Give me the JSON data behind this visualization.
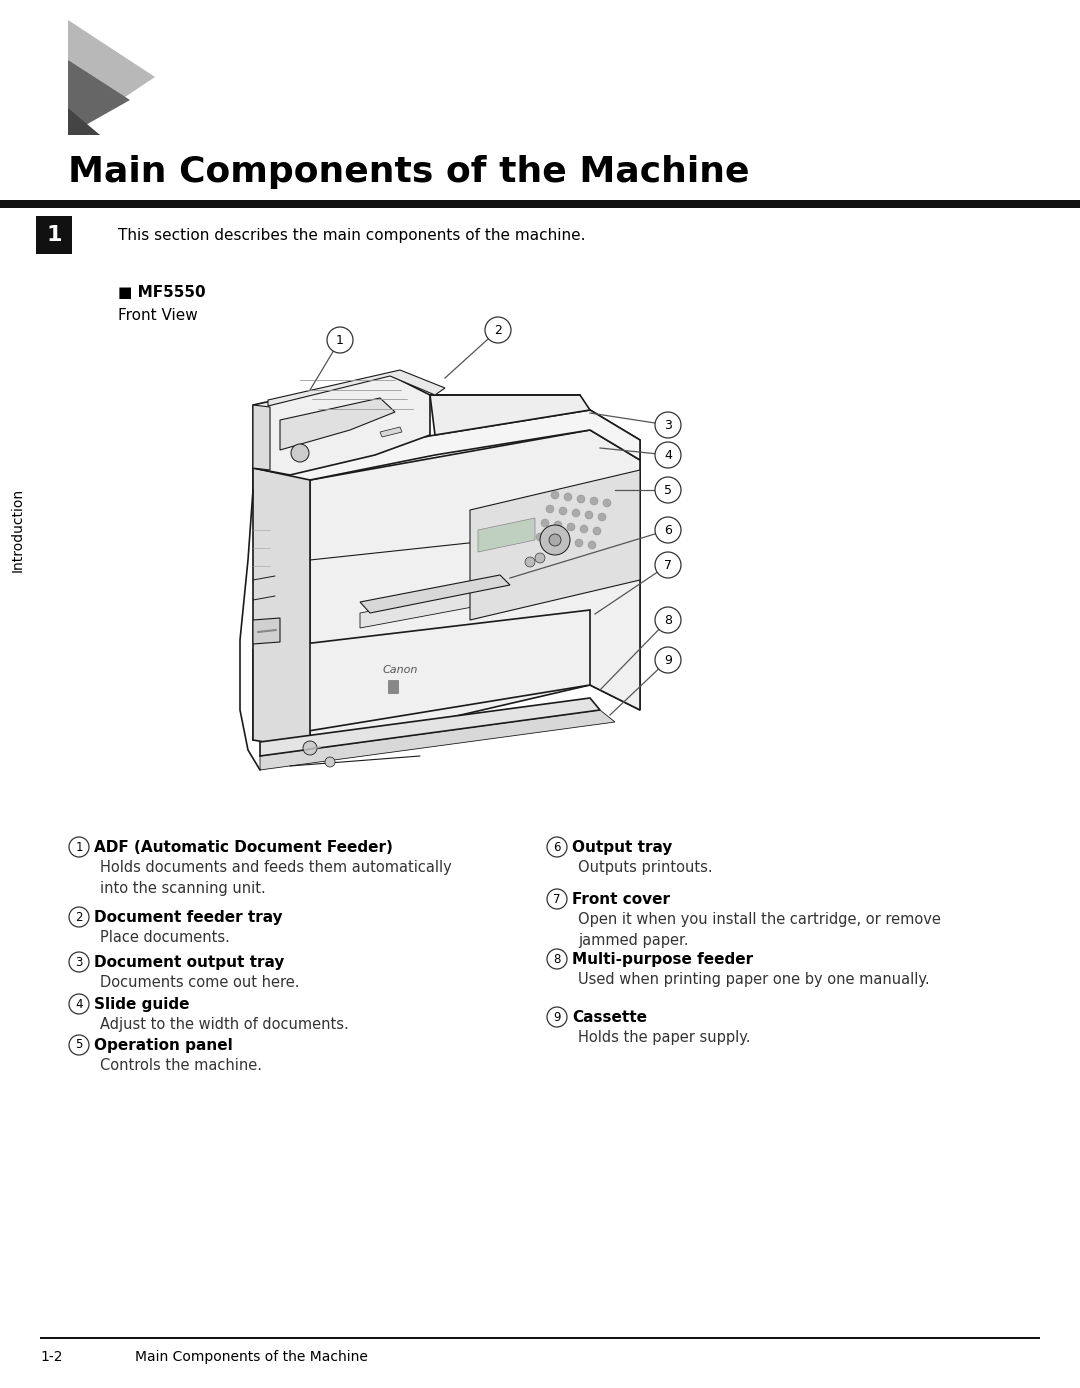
{
  "page_bg": "#ffffff",
  "title": "Main Components of the Machine",
  "title_fontsize": 26,
  "section_number": "1",
  "sidebar_label": "Introduction",
  "intro_text": "This section describes the main components of the machine.",
  "model_bold": "■ MF5550",
  "view_text": "Front View",
  "footer_left": "1-2",
  "footer_right": "Main Components of the Machine",
  "components_left": [
    {
      "num": "1",
      "title": "ADF (Automatic Document Feeder)",
      "desc": "Holds documents and feeds them automatically\ninto the scanning unit."
    },
    {
      "num": "2",
      "title": "Document feeder tray",
      "desc": "Place documents."
    },
    {
      "num": "3",
      "title": "Document output tray",
      "desc": "Documents come out here."
    },
    {
      "num": "4",
      "title": "Slide guide",
      "desc": "Adjust to the width of documents."
    },
    {
      "num": "5",
      "title": "Operation panel",
      "desc": "Controls the machine."
    }
  ],
  "components_right": [
    {
      "num": "6",
      "title": "Output tray",
      "desc": "Outputs printouts."
    },
    {
      "num": "7",
      "title": "Front cover",
      "desc": "Open it when you install the cartridge, or remove\njammed paper."
    },
    {
      "num": "8",
      "title": "Multi-purpose feeder",
      "desc": "Used when printing paper one by one manually."
    },
    {
      "num": "9",
      "title": "Cassette",
      "desc": "Holds the paper supply."
    }
  ],
  "tri_light": "#b8b8b8",
  "tri_dark": "#666666",
  "bar_color": "#111111",
  "box_color": "#111111",
  "callout_ec": "#333333",
  "leader_color": "#555555"
}
